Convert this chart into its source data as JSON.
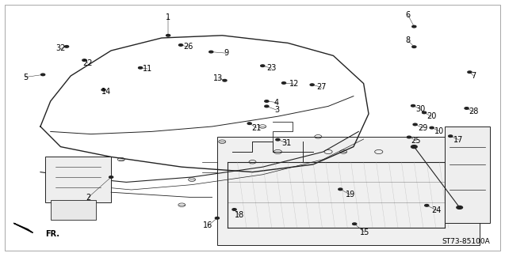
{
  "bg_color": "#ffffff",
  "diagram_code": "ST73-85100A",
  "line_color": "#222222",
  "label_fontsize": 7,
  "parts_with_leaders": {
    "1": [
      0.333,
      0.93,
      0.333,
      0.86
    ],
    "2": [
      0.175,
      0.22,
      0.22,
      0.3
    ],
    "3": [
      0.548,
      0.565,
      0.528,
      0.58
    ],
    "4": [
      0.548,
      0.595,
      0.528,
      0.6
    ],
    "5": [
      0.05,
      0.695,
      0.085,
      0.705
    ],
    "6": [
      0.808,
      0.94,
      0.82,
      0.895
    ],
    "7": [
      0.938,
      0.7,
      0.93,
      0.715
    ],
    "8": [
      0.808,
      0.84,
      0.82,
      0.815
    ],
    "9": [
      0.448,
      0.79,
      0.418,
      0.795
    ],
    "10": [
      0.87,
      0.482,
      0.855,
      0.495
    ],
    "11": [
      0.292,
      0.728,
      0.278,
      0.732
    ],
    "12": [
      0.582,
      0.668,
      0.562,
      0.672
    ],
    "13": [
      0.432,
      0.692,
      0.445,
      0.682
    ],
    "14": [
      0.21,
      0.638,
      0.205,
      0.645
    ],
    "15": [
      0.722,
      0.082,
      0.702,
      0.115
    ],
    "16": [
      0.412,
      0.108,
      0.43,
      0.138
    ],
    "17": [
      0.908,
      0.448,
      0.892,
      0.462
    ],
    "18": [
      0.474,
      0.15,
      0.464,
      0.172
    ],
    "19": [
      0.694,
      0.23,
      0.674,
      0.252
    ],
    "20": [
      0.854,
      0.54,
      0.84,
      0.555
    ],
    "21": [
      0.508,
      0.495,
      0.494,
      0.512
    ],
    "22": [
      0.174,
      0.75,
      0.167,
      0.762
    ],
    "23": [
      0.538,
      0.73,
      0.52,
      0.74
    ],
    "24": [
      0.864,
      0.17,
      0.845,
      0.188
    ],
    "25": [
      0.824,
      0.445,
      0.81,
      0.458
    ],
    "26": [
      0.372,
      0.815,
      0.358,
      0.822
    ],
    "27": [
      0.637,
      0.655,
      0.618,
      0.665
    ],
    "28": [
      0.938,
      0.558,
      0.924,
      0.572
    ],
    "29": [
      0.837,
      0.495,
      0.822,
      0.508
    ],
    "30": [
      0.832,
      0.57,
      0.818,
      0.582
    ],
    "31": [
      0.568,
      0.435,
      0.55,
      0.448
    ],
    "32": [
      0.12,
      0.808,
      0.132,
      0.816
    ]
  }
}
